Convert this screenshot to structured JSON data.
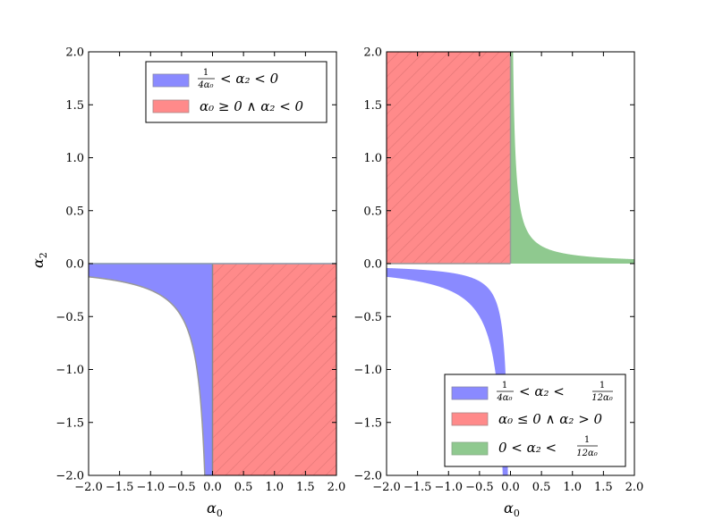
{
  "chart_data": [
    {
      "type": "area",
      "xlabel": "α",
      "xlabel_sub": "0",
      "ylabel": "α",
      "ylabel_sub": "2",
      "xlim": [
        -2.0,
        2.0
      ],
      "ylim": [
        -2.0,
        2.0
      ],
      "xticks": [
        "−2.0",
        "−1.5",
        "−1.0",
        "−0.5",
        "0.0",
        "0.5",
        "1.0",
        "1.5",
        "2.0"
      ],
      "yticks": [
        "−2.0",
        "−1.5",
        "−1.0",
        "−0.5",
        "0.0",
        "0.5",
        "1.0",
        "1.5",
        "2.0"
      ],
      "legend_position": "top-right",
      "series": [
        {
          "name": "1/(4α₀) < α₂ < 0",
          "legend_parts": {
            "frac_num": "1",
            "frac_den": "4α₀",
            "rest": "< α₂ < 0"
          },
          "color": "#8a8aff",
          "region": {
            "kind": "between",
            "curve": "1/(4x)",
            "upper": 0,
            "x_range": [
              -2.0,
              0.0
            ]
          }
        },
        {
          "name": "α₀ ≥ 0 ∧ α₂ < 0",
          "legend_parts": {
            "text": "α₀ ≥ 0 ∧ α₂ < 0"
          },
          "color": "#ff8a8a",
          "hatch": true,
          "region": {
            "kind": "rect",
            "x_range": [
              0.0,
              2.0
            ],
            "y_range": [
              -2.0,
              0.0
            ]
          }
        }
      ]
    },
    {
      "type": "area",
      "xlabel": "α",
      "xlabel_sub": "0",
      "xlim": [
        -2.0,
        2.0
      ],
      "ylim": [
        -2.0,
        2.0
      ],
      "xticks": [
        "−2.0",
        "−1.5",
        "−1.0",
        "−0.5",
        "0.0",
        "0.5",
        "1.0",
        "1.5",
        "2.0"
      ],
      "yticks": [
        "−2.0",
        "−1.5",
        "−1.0",
        "−0.5",
        "0.0",
        "0.5",
        "1.0",
        "1.5",
        "2.0"
      ],
      "legend_position": "bottom-right",
      "series": [
        {
          "name": "1/(4α₀) < α₂ < 1/(12α₀)",
          "legend_parts": {
            "frac_num": "1",
            "frac_den": "4α₀",
            "mid": "< α₂ <",
            "frac2_num": "1",
            "frac2_den": "12α₀"
          },
          "color": "#8a8aff",
          "region": {
            "kind": "between",
            "curve": "1/(4x)",
            "upper_curve": "1/(12x)",
            "x_range": [
              -2.0,
              0.0
            ]
          }
        },
        {
          "name": "α₀ ≤ 0 ∧ α₂ > 0",
          "legend_parts": {
            "text": "α₀ ≤ 0 ∧ α₂ > 0"
          },
          "color": "#ff8a8a",
          "hatch": true,
          "region": {
            "kind": "rect",
            "x_range": [
              -2.0,
              0.0
            ],
            "y_range": [
              0.0,
              2.0
            ]
          }
        },
        {
          "name": "0 < α₂ < 1/(12α₀)",
          "legend_parts": {
            "pre": "0 < α₂ <",
            "frac2_num": "1",
            "frac2_den": "12α₀"
          },
          "color": "#8fc98f",
          "region": {
            "kind": "between",
            "lower": 0,
            "upper_curve": "1/(12x)",
            "x_range": [
              0.0,
              2.0
            ]
          }
        }
      ]
    }
  ]
}
